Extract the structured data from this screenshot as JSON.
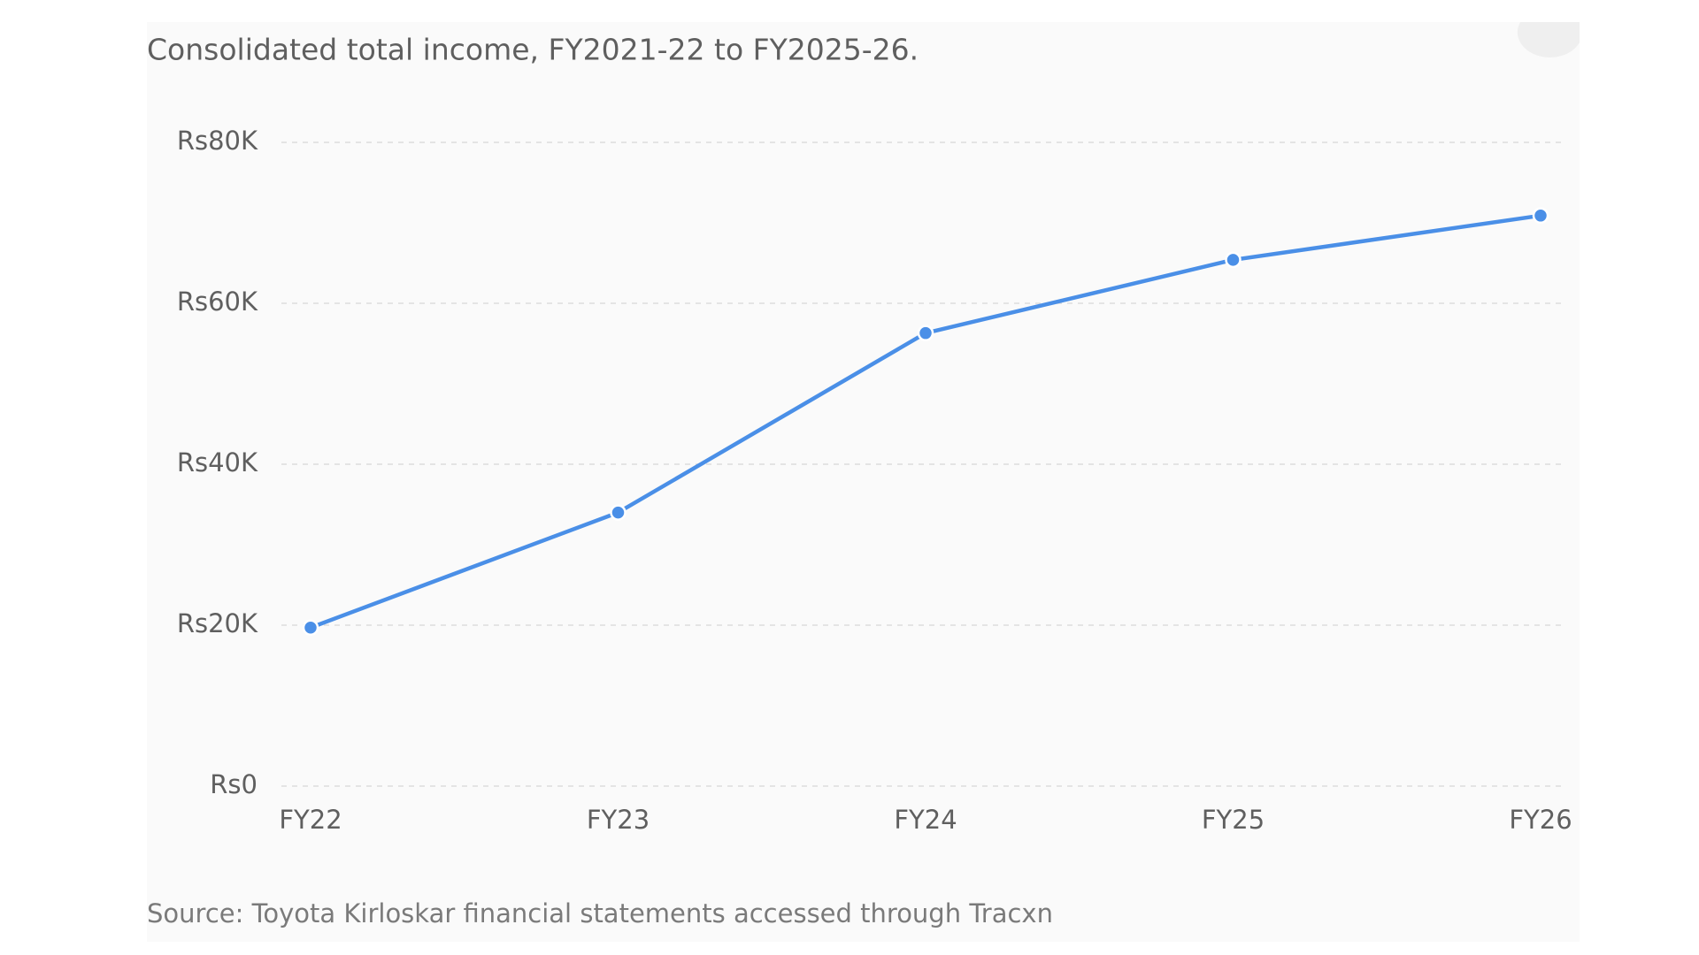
{
  "chart_data": {
    "type": "line",
    "title": "Consolidated total income, FY2021-22 to FY2025-26.",
    "source": "Source: Toyota Kirloskar financial statements accessed through Tracxn",
    "categories": [
      "FY22",
      "FY23",
      "FY24",
      "FY25",
      "FY26"
    ],
    "values": [
      19700,
      34000,
      56300,
      65400,
      70900
    ],
    "color": "#4a8fe7",
    "ylim": [
      0,
      80000
    ],
    "yticks": [
      {
        "value": 0,
        "label": "Rs0"
      },
      {
        "value": 20000,
        "label": "Rs20K"
      },
      {
        "value": 40000,
        "label": "Rs40K"
      },
      {
        "value": 60000,
        "label": "Rs60K"
      },
      {
        "value": 80000,
        "label": "Rs80K"
      }
    ],
    "grid": true
  }
}
